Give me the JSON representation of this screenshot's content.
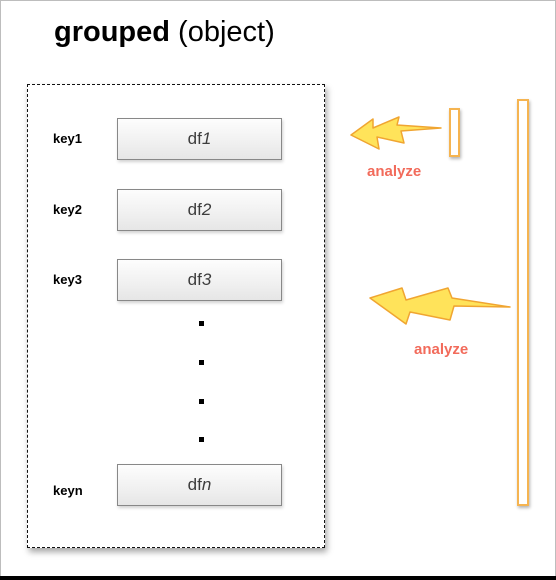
{
  "title": {
    "bold": "grouped",
    "normal": " (object)"
  },
  "groups": [
    {
      "key": "key1",
      "df_prefix": "df",
      "df_index": "1"
    },
    {
      "key": "key2",
      "df_prefix": "df",
      "df_index": "2"
    },
    {
      "key": "key3",
      "df_prefix": "df",
      "df_index": "3"
    },
    {
      "key": "keyn",
      "df_prefix": "df",
      "df_index": "n"
    }
  ],
  "ellipsis_dots": 4,
  "analyze": {
    "label_small": "analyze",
    "label_large": "analyze"
  },
  "colors": {
    "analyze_text": "#f26b5b",
    "bolt_fill": "#ffe35a",
    "bolt_stroke": "#f0a531",
    "bar_border": "#f5b451"
  }
}
